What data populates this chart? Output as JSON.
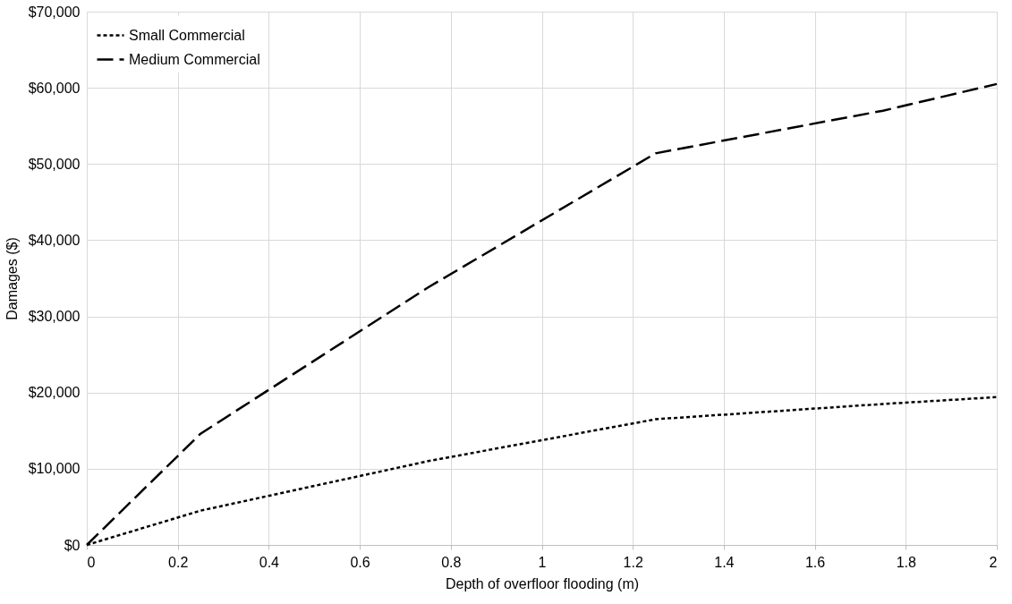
{
  "chart_data": {
    "type": "line",
    "xlabel": "Depth of overfloor flooding (m)",
    "ylabel": "Damages ($)",
    "xlim": [
      0,
      2
    ],
    "xticks": [
      0,
      0.2,
      0.4,
      0.6,
      0.8,
      1,
      1.2,
      1.4,
      1.6,
      1.8,
      2
    ],
    "ylim": [
      0,
      70000
    ],
    "yticks": [
      {
        "value": 0,
        "label": "$0"
      },
      {
        "value": 10000,
        "label": "$10,000"
      },
      {
        "value": 20000,
        "label": "$20,000"
      },
      {
        "value": 30000,
        "label": "$30,000"
      },
      {
        "value": 40000,
        "label": "$40,000"
      },
      {
        "value": 50000,
        "label": "$50,000"
      },
      {
        "value": 60000,
        "label": "$60,000"
      },
      {
        "value": 70000,
        "label": "$70,000"
      }
    ],
    "x": [
      0,
      0.25,
      0.75,
      1.25,
      1.75,
      2
    ],
    "series": [
      {
        "name": "Small Commercial",
        "color": "#000000",
        "line_style": "dotted",
        "values": [
          0,
          4500,
          11000,
          16500,
          18500,
          19400
        ]
      },
      {
        "name": "Medium Commercial",
        "color": "#000000",
        "line_style": "dashed",
        "values": [
          0,
          14600,
          33800,
          51400,
          57000,
          60500
        ]
      }
    ],
    "grid": true,
    "legend": "top left",
    "marker": "none"
  }
}
